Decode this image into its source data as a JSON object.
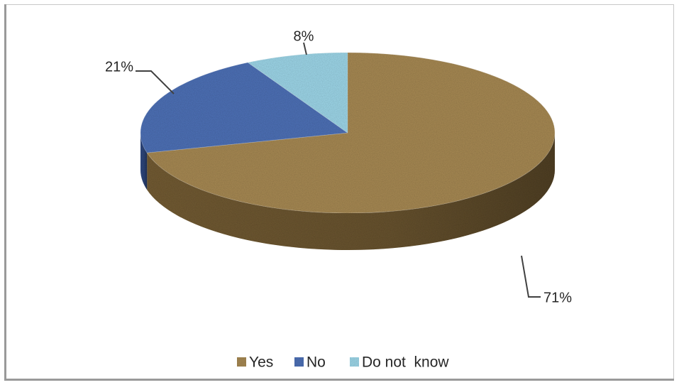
{
  "chart_data": {
    "type": "pie",
    "style": "3d",
    "categories": [
      "Yes",
      "No",
      "Do not  know"
    ],
    "values": [
      71,
      21,
      8
    ],
    "labels": [
      "71%",
      "21%",
      "8%"
    ],
    "colors": [
      "#a88a55",
      "#4f72b8",
      "#9fd8ea"
    ],
    "side_colors": [
      "#7a6237",
      "#36508a",
      "#6fa9bd"
    ],
    "legend_position": "bottom",
    "title": ""
  }
}
